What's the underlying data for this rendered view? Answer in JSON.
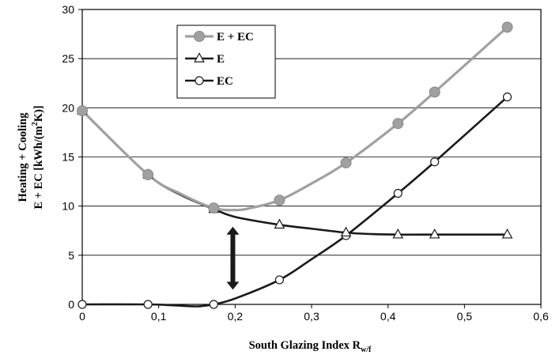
{
  "chart_data": {
    "type": "line",
    "title": "",
    "xlabel": "South Glazing Index R",
    "xlabel_subscript": "w/f",
    "ylabel_lines": [
      "Heating + Cooling",
      "E + EC  [kWh/(m",
      "2",
      "K)]"
    ],
    "xlim": [
      0,
      0.6
    ],
    "ylim": [
      0,
      30
    ],
    "x_ticks": [
      0,
      0.1,
      0.2,
      0.3,
      0.4,
      0.5,
      0.6
    ],
    "x_tick_labels": [
      "0",
      "0,1",
      "0,2",
      "0,3",
      "0,4",
      "0,5",
      "0,6"
    ],
    "y_ticks": [
      0,
      5,
      10,
      15,
      20,
      25,
      30
    ],
    "y_tick_labels": [
      "0",
      "5",
      "10",
      "15",
      "20",
      "25",
      "30"
    ],
    "grid": "horizontal",
    "legend_position": "top-left-inside",
    "series": [
      {
        "name": "E + EC",
        "color": "#a0a0a0",
        "marker": "filled-circle",
        "marker_color": "#a0a0a0",
        "x": [
          0,
          0.086,
          0.172,
          0.258,
          0.345,
          0.413,
          0.461,
          0.556
        ],
        "y": [
          19.7,
          13.2,
          9.8,
          10.6,
          14.4,
          18.4,
          21.6,
          28.2
        ],
        "curve_x": [
          0,
          0.086,
          0.13,
          0.172,
          0.2,
          0.22,
          0.258,
          0.3,
          0.345,
          0.413,
          0.461,
          0.556
        ],
        "curve_y": [
          19.7,
          13.2,
          11.2,
          9.8,
          9.6,
          9.8,
          10.6,
          12.3,
          14.4,
          18.4,
          21.6,
          28.2
        ]
      },
      {
        "name": "E",
        "color": "#1a1a1a",
        "marker": "open-triangle",
        "x": [
          0,
          0.086,
          0.172,
          0.258,
          0.345,
          0.413,
          0.461,
          0.556
        ],
        "y": [
          19.7,
          13.2,
          9.7,
          8.1,
          7.3,
          7.1,
          7.1,
          7.1
        ],
        "curve_x": [
          0,
          0.086,
          0.13,
          0.172,
          0.2,
          0.258,
          0.3,
          0.345,
          0.38,
          0.413,
          0.461,
          0.556
        ],
        "curve_y": [
          19.7,
          13.2,
          11.1,
          9.7,
          8.9,
          8.1,
          7.7,
          7.3,
          7.15,
          7.1,
          7.1,
          7.1
        ]
      },
      {
        "name": "EC",
        "color": "#1a1a1a",
        "marker": "open-circle",
        "x": [
          0,
          0.086,
          0.172,
          0.258,
          0.345,
          0.413,
          0.461,
          0.556
        ],
        "y": [
          0,
          0,
          0,
          2.5,
          7.0,
          11.3,
          14.5,
          21.1
        ],
        "curve_x": [
          0,
          0.086,
          0.12,
          0.15,
          0.172,
          0.2,
          0.258,
          0.3,
          0.345,
          0.413,
          0.461,
          0.556
        ],
        "curve_y": [
          0,
          0,
          -0.1,
          -0.2,
          0,
          0.6,
          2.5,
          4.6,
          7.0,
          11.3,
          14.5,
          21.1
        ]
      }
    ],
    "annotations": [
      {
        "type": "double-arrow",
        "x": 0.197,
        "y_from": 1.5,
        "y_to": 7.9,
        "color": "#1a1a1a"
      }
    ]
  }
}
